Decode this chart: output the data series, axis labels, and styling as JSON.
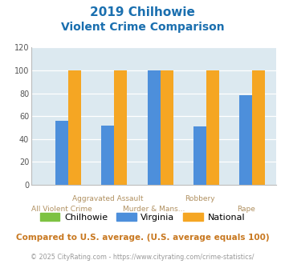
{
  "title_line1": "2019 Chilhowie",
  "title_line2": "Violent Crime Comparison",
  "chilhowie_values": [
    0,
    0,
    0,
    0,
    0
  ],
  "virginia_values": [
    56,
    52,
    100,
    51,
    78
  ],
  "national_values": [
    100,
    100,
    100,
    100,
    100
  ],
  "colors": {
    "chilhowie": "#7dc242",
    "virginia": "#4d8fdb",
    "national": "#f5a623"
  },
  "ylim": [
    0,
    120
  ],
  "yticks": [
    0,
    20,
    40,
    60,
    80,
    100,
    120
  ],
  "title_color": "#1a6faf",
  "axis_bg_color": "#dce9f0",
  "fig_bg_color": "#ffffff",
  "top_xlabels": [
    "",
    "Aggravated Assault",
    "",
    "Robbery",
    ""
  ],
  "bottom_xlabels": [
    "All Violent Crime",
    "",
    "Murder & Mans...",
    "",
    "Rape"
  ],
  "xlabel_color": "#b09060",
  "footer_text": "Compared to U.S. average. (U.S. average equals 100)",
  "copyright_text": "© 2025 CityRating.com - https://www.cityrating.com/crime-statistics/",
  "footer_color": "#c87820",
  "copyright_color": "#999999",
  "bar_width": 0.28
}
